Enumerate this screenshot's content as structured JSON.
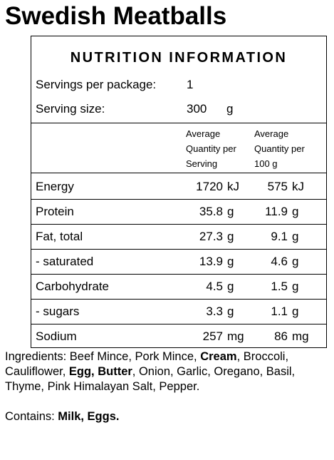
{
  "title": "Swedish Meatballs",
  "panel": {
    "heading": "NUTRITION INFORMATION",
    "servings_label": "Servings per package:",
    "servings": 1,
    "serving_size_label": "Serving size:",
    "serving_size": 300,
    "serving_size_unit": "g",
    "columns": [
      "Average Quantity per Serving",
      "Average Quantity per 100 g"
    ],
    "rows": [
      {
        "name": "Energy",
        "per_serving": 1720,
        "per_100g": 575,
        "unit": "kJ"
      },
      {
        "name": "Protein",
        "per_serving": 35.8,
        "per_100g": 11.9,
        "unit": "g"
      },
      {
        "name": "Fat, total",
        "per_serving": 27.3,
        "per_100g": 9.1,
        "unit": "g"
      },
      {
        "name": "- saturated",
        "per_serving": 13.9,
        "per_100g": 4.6,
        "unit": "g"
      },
      {
        "name": "Carbohydrate",
        "per_serving": 4.5,
        "per_100g": 1.5,
        "unit": "g"
      },
      {
        "name": "- sugars",
        "per_serving": 3.3,
        "per_100g": 1.1,
        "unit": "g"
      },
      {
        "name": "Sodium",
        "per_serving": 257,
        "per_100g": 86,
        "unit": "mg"
      }
    ]
  },
  "ingredients": [
    {
      "text": "Ingredients: Beef Mince, Pork Mince, ",
      "bold": false
    },
    {
      "text": "Cream",
      "bold": true
    },
    {
      "text": ", Broccoli, Cauliflower, ",
      "bold": false
    },
    {
      "text": "Egg, Butter",
      "bold": true
    },
    {
      "text": ", Onion, Garlic, Oregano, Basil, Thyme, Pink Himalayan Salt, Pepper.",
      "bold": false
    }
  ],
  "contains": [
    {
      "text": "Contains: ",
      "bold": false
    },
    {
      "text": "Milk, Eggs.",
      "bold": true
    }
  ]
}
